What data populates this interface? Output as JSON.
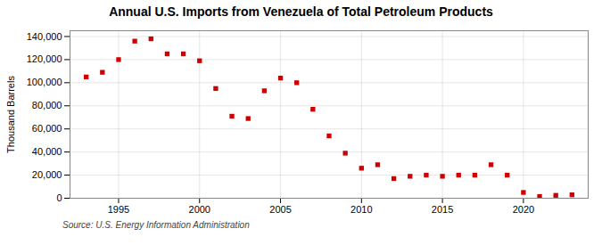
{
  "chart_data": {
    "type": "scatter",
    "title": "Annual U.S. Imports from Venezuela of Total Petroleum Products",
    "ylabel": "Thousand Barrels",
    "source": "Source: U.S. Energy Information Administration",
    "x": [
      1993,
      1994,
      1995,
      1996,
      1997,
      1998,
      1999,
      2000,
      2001,
      2002,
      2003,
      2004,
      2005,
      2006,
      2007,
      2008,
      2009,
      2010,
      2011,
      2012,
      2013,
      2014,
      2015,
      2016,
      2017,
      2018,
      2019,
      2020,
      2021,
      2022,
      2023
    ],
    "values": [
      105000,
      109000,
      120000,
      136000,
      138000,
      125000,
      125000,
      119000,
      95000,
      71000,
      69000,
      93000,
      104000,
      100000,
      77000,
      54000,
      39000,
      26000,
      29000,
      17000,
      19000,
      20000,
      19000,
      20000,
      20000,
      29000,
      20000,
      5000,
      1500,
      2500,
      3000
    ],
    "color": "#cc0000",
    "marker": "square",
    "xlim": [
      1992.0,
      2024.0
    ],
    "xticks": [
      1995,
      2000,
      2005,
      2010,
      2015,
      2020
    ],
    "ylim": [
      0,
      145000
    ],
    "yticks": [
      0,
      {
        "value": 20000,
        "label": "20,000"
      },
      {
        "value": 40000,
        "label": "40,000"
      },
      {
        "value": 60000,
        "label": "60,000"
      },
      {
        "value": 80000,
        "label": "80,000"
      },
      {
        "value": 100000,
        "label": "100,000"
      },
      {
        "value": 120000,
        "label": "120,000"
      },
      {
        "value": 140000,
        "label": "140,000"
      }
    ],
    "grid": true
  }
}
